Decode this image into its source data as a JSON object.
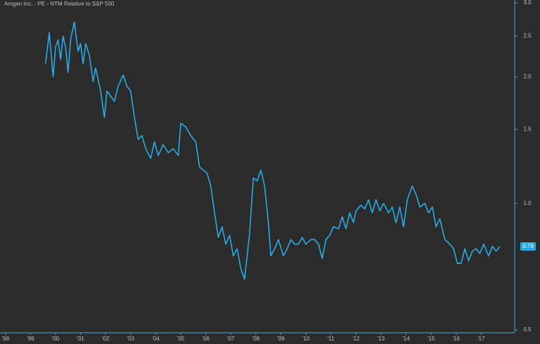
{
  "chart_data": {
    "type": "line",
    "title": "Amgen Inc. - PE - NTM Relative to S&P 500",
    "color": "#2aa9e0",
    "log_y": true,
    "xlim": [
      1997.78,
      2018.34
    ],
    "xticks": [
      {
        "value": 1998,
        "label": "'98"
      },
      {
        "value": 1999,
        "label": "'99"
      },
      {
        "value": 2000,
        "label": "'00"
      },
      {
        "value": 2001,
        "label": "'01"
      },
      {
        "value": 2002,
        "label": "'02"
      },
      {
        "value": 2003,
        "label": "'03"
      },
      {
        "value": 2004,
        "label": "'04"
      },
      {
        "value": 2005,
        "label": "'05"
      },
      {
        "value": 2006,
        "label": "'06"
      },
      {
        "value": 2007,
        "label": "'07"
      },
      {
        "value": 2008,
        "label": "'08"
      },
      {
        "value": 2009,
        "label": "'09"
      },
      {
        "value": 2010,
        "label": "'10"
      },
      {
        "value": 2011,
        "label": "'11"
      },
      {
        "value": 2012,
        "label": "'12"
      },
      {
        "value": 2013,
        "label": "'13"
      },
      {
        "value": 2014,
        "label": "'14"
      },
      {
        "value": 2015,
        "label": "'15"
      },
      {
        "value": 2016,
        "label": "'16"
      },
      {
        "value": 2017,
        "label": "'17"
      }
    ],
    "ylim": [
      0.5,
      3
    ],
    "yticks": [
      0.5,
      {
        "value": 1,
        "label": "1.0"
      },
      1.5,
      {
        "value": 2,
        "label": "2.0"
      },
      2.5,
      {
        "value": 3,
        "label": "3.0"
      }
    ],
    "x": [
      1999.6,
      1999.75,
      1999.9,
      2000.0,
      2000.1,
      2000.2,
      2000.3,
      2000.4,
      2000.5,
      2000.6,
      2000.75,
      2000.9,
      2001.0,
      2001.1,
      2001.2,
      2001.35,
      2001.5,
      2001.6,
      2001.8,
      2001.95,
      2002.05,
      2002.2,
      2002.35,
      2002.5,
      2002.7,
      2002.85,
      2003.0,
      2003.15,
      2003.3,
      2003.45,
      2003.6,
      2003.8,
      2003.95,
      2004.1,
      2004.3,
      2004.5,
      2004.7,
      2004.9,
      2005.0,
      2005.2,
      2005.4,
      2005.6,
      2005.75,
      2005.9,
      2006.05,
      2006.2,
      2006.35,
      2006.5,
      2006.65,
      2006.8,
      2006.95,
      2007.1,
      2007.25,
      2007.4,
      2007.55,
      2007.75,
      2007.9,
      2008.05,
      2008.2,
      2008.35,
      2008.5,
      2008.6,
      2008.75,
      2008.9,
      2009.1,
      2009.25,
      2009.4,
      2009.55,
      2009.7,
      2009.85,
      2010.0,
      2010.2,
      2010.35,
      2010.5,
      2010.65,
      2010.8,
      2010.95,
      2011.1,
      2011.3,
      2011.45,
      2011.6,
      2011.75,
      2011.9,
      2012.0,
      2012.2,
      2012.35,
      2012.5,
      2012.65,
      2012.8,
      2012.95,
      2013.1,
      2013.3,
      2013.45,
      2013.6,
      2013.75,
      2013.9,
      2014.05,
      2014.25,
      2014.4,
      2014.55,
      2014.75,
      2014.9,
      2015.05,
      2015.2,
      2015.35,
      2015.55,
      2015.75,
      2015.9,
      2016.05,
      2016.2,
      2016.35,
      2016.5,
      2016.65,
      2016.8,
      2016.95,
      2017.1,
      2017.3,
      2017.45,
      2017.6,
      2017.75
    ],
    "values": [
      2.15,
      2.55,
      2.0,
      2.35,
      2.45,
      2.2,
      2.5,
      2.35,
      2.05,
      2.45,
      2.7,
      2.3,
      2.4,
      2.15,
      2.4,
      2.25,
      1.95,
      2.1,
      1.85,
      1.6,
      1.85,
      1.8,
      1.75,
      1.9,
      2.02,
      1.9,
      1.85,
      1.6,
      1.42,
      1.45,
      1.35,
      1.28,
      1.4,
      1.3,
      1.38,
      1.32,
      1.35,
      1.3,
      1.55,
      1.52,
      1.45,
      1.4,
      1.22,
      1.2,
      1.18,
      1.1,
      0.95,
      0.83,
      0.88,
      0.8,
      0.84,
      0.75,
      0.78,
      0.7,
      0.66,
      0.85,
      1.15,
      1.13,
      1.2,
      1.1,
      0.9,
      0.75,
      0.78,
      0.82,
      0.75,
      0.78,
      0.82,
      0.8,
      0.8,
      0.83,
      0.8,
      0.82,
      0.82,
      0.8,
      0.74,
      0.82,
      0.84,
      0.88,
      0.87,
      0.93,
      0.87,
      0.95,
      0.9,
      0.96,
      0.99,
      0.97,
      1.02,
      0.95,
      1.02,
      0.96,
      1.0,
      0.95,
      0.98,
      0.9,
      0.98,
      0.88,
      1.02,
      1.1,
      1.05,
      0.98,
      1.0,
      0.95,
      0.98,
      0.88,
      0.92,
      0.82,
      0.8,
      0.78,
      0.72,
      0.72,
      0.78,
      0.73,
      0.77,
      0.78,
      0.76,
      0.8,
      0.75,
      0.79,
      0.77,
      0.79
    ]
  }
}
